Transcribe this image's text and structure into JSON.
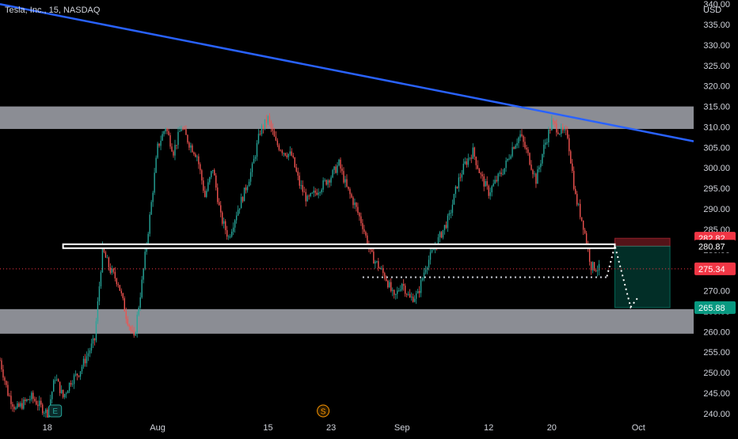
{
  "header": {
    "symbol_title": "Tesla, Inc., 15, NASDAQ",
    "currency": "USD"
  },
  "colors": {
    "background": "#000000",
    "up": "#26a69a",
    "down": "#ef5350",
    "trendline": "#2962ff",
    "zone": "#b2b5be",
    "axis_text": "#d1d4dc",
    "current_price": "#f23645",
    "target_price": "#089981"
  },
  "chart_data": {
    "type": "candlestick",
    "title": "Tesla, Inc., 15, NASDAQ",
    "y_axis_unit": "USD",
    "ylim": [
      239,
      341
    ],
    "y_ticks": [
      240,
      245,
      250,
      255,
      260,
      265,
      270,
      275,
      280,
      285,
      290,
      295,
      300,
      305,
      310,
      315,
      320,
      325,
      330,
      335,
      340
    ],
    "x_range": [
      "2023-07-12",
      "2023-10-08"
    ],
    "x_ticks": [
      {
        "date": "2023-07-18",
        "label": "18"
      },
      {
        "date": "2023-08-01",
        "label": "Aug"
      },
      {
        "date": "2023-08-15",
        "label": "15"
      },
      {
        "date": "2023-08-23",
        "label": "23"
      },
      {
        "date": "2023-09-01",
        "label": "Sep"
      },
      {
        "date": "2023-09-12",
        "label": "12"
      },
      {
        "date": "2023-09-20",
        "label": "20"
      },
      {
        "date": "2023-10-01",
        "label": "Oct"
      }
    ],
    "price_path": [
      [
        "2023-07-12",
        253
      ],
      [
        "2023-07-13",
        245
      ],
      [
        "2023-07-14",
        241
      ],
      [
        "2023-07-16",
        244
      ],
      [
        "2023-07-18",
        240
      ],
      [
        "2023-07-19",
        249
      ],
      [
        "2023-07-20",
        244
      ],
      [
        "2023-07-21",
        248
      ],
      [
        "2023-07-22",
        250
      ],
      [
        "2023-07-24",
        258
      ],
      [
        "2023-07-25",
        280
      ],
      [
        "2023-07-26",
        275
      ],
      [
        "2023-07-27",
        272
      ],
      [
        "2023-07-28",
        264
      ],
      [
        "2023-07-29",
        258
      ],
      [
        "2023-07-30",
        272
      ],
      [
        "2023-07-31",
        288
      ],
      [
        "2023-08-01",
        305
      ],
      [
        "2023-08-02",
        310
      ],
      [
        "2023-08-03",
        304
      ],
      [
        "2023-08-04",
        310
      ],
      [
        "2023-08-05",
        306
      ],
      [
        "2023-08-06",
        303
      ],
      [
        "2023-08-07",
        293
      ],
      [
        "2023-08-08",
        300
      ],
      [
        "2023-08-09",
        288
      ],
      [
        "2023-08-10",
        283
      ],
      [
        "2023-08-11",
        289
      ],
      [
        "2023-08-12",
        294
      ],
      [
        "2023-08-13",
        300
      ],
      [
        "2023-08-14",
        309
      ],
      [
        "2023-08-15",
        312
      ],
      [
        "2023-08-16",
        306
      ],
      [
        "2023-08-17",
        304
      ],
      [
        "2023-08-18",
        303
      ],
      [
        "2023-08-19",
        296
      ],
      [
        "2023-08-20",
        292
      ],
      [
        "2023-08-21",
        294
      ],
      [
        "2023-08-22",
        296
      ],
      [
        "2023-08-23",
        298
      ],
      [
        "2023-08-24",
        301
      ],
      [
        "2023-08-25",
        295
      ],
      [
        "2023-08-26",
        291
      ],
      [
        "2023-08-27",
        286
      ],
      [
        "2023-08-28",
        279
      ],
      [
        "2023-08-29",
        276
      ],
      [
        "2023-08-30",
        273
      ],
      [
        "2023-08-31",
        268
      ],
      [
        "2023-09-01",
        272
      ],
      [
        "2023-09-02",
        268
      ],
      [
        "2023-09-03",
        269
      ],
      [
        "2023-09-04",
        276
      ],
      [
        "2023-09-05",
        280
      ],
      [
        "2023-09-06",
        284
      ],
      [
        "2023-09-07",
        288
      ],
      [
        "2023-09-08",
        296
      ],
      [
        "2023-09-09",
        301
      ],
      [
        "2023-09-10",
        304
      ],
      [
        "2023-09-11",
        298
      ],
      [
        "2023-09-12",
        294
      ],
      [
        "2023-09-13",
        297
      ],
      [
        "2023-09-14",
        300
      ],
      [
        "2023-09-15",
        305
      ],
      [
        "2023-09-16",
        308
      ],
      [
        "2023-09-17",
        303
      ],
      [
        "2023-09-18",
        297
      ],
      [
        "2023-09-19",
        305
      ],
      [
        "2023-09-20",
        311
      ],
      [
        "2023-09-21",
        309
      ],
      [
        "2023-09-22",
        308
      ],
      [
        "2023-09-23",
        293
      ],
      [
        "2023-09-24",
        286
      ],
      [
        "2023-09-25",
        276
      ],
      [
        "2023-09-26",
        275.34
      ]
    ],
    "price_labels": [
      {
        "name": "resistance-zone-price",
        "value": 282.82,
        "text": "282.82",
        "color": "#f23645"
      },
      {
        "name": "support-line-price",
        "value": 280.87,
        "text": "280.87",
        "color": "#ffffff"
      },
      {
        "name": "current-price",
        "value": 275.34,
        "text": "275.34",
        "color": "#f23645"
      },
      {
        "name": "target-price",
        "value": 265.88,
        "text": "265.88",
        "color": "#089981"
      }
    ],
    "annotations": {
      "resistance_zone": {
        "low": 309.5,
        "high": 315
      },
      "support_zone": {
        "low": 259.5,
        "high": 265.5
      },
      "support_line": {
        "value": 280.87,
        "start": "2023-07-20",
        "end": "2023-09-28"
      },
      "neckline_dotted": {
        "value": 273.3,
        "start": "2023-08-27",
        "end": "2023-09-27"
      },
      "trendline": {
        "start": [
          "2023-07-12",
          340
        ],
        "end": [
          "2023-10-08",
          306.5
        ]
      },
      "short_position": {
        "start": "2023-09-28",
        "end": "2023-10-05",
        "entry": 280.87,
        "stop": 282.82,
        "target": 265.88
      },
      "projection_path": [
        [
          "2023-09-27",
          273.5
        ],
        [
          "2023-09-28",
          281
        ],
        [
          "2023-09-30",
          266
        ],
        [
          "2023-10-01",
          268.5
        ]
      ]
    },
    "events": [
      {
        "date": "2023-07-19",
        "label": "E"
      },
      {
        "date": "2023-08-22",
        "label": "S"
      }
    ]
  }
}
